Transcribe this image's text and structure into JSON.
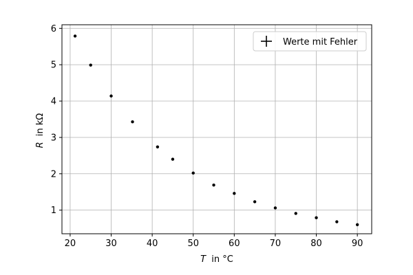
{
  "chart_data": {
    "type": "scatter",
    "xlabel": "in °C",
    "xlabel_var": "T",
    "ylabel": "in kΩ",
    "ylabel_var": "R",
    "xlim": [
      18,
      93.5
    ],
    "ylim": [
      0.35,
      6.1
    ],
    "xticks": [
      20,
      30,
      40,
      50,
      60,
      70,
      80,
      90
    ],
    "yticks": [
      1,
      2,
      3,
      4,
      5,
      6
    ],
    "grid": true,
    "legend": {
      "position": "top-right",
      "entries": [
        "Werte mit Fehler"
      ]
    },
    "series": [
      {
        "name": "Werte mit Fehler",
        "color": "#000000",
        "x": [
          21.2,
          25,
          30,
          35.2,
          41.3,
          45,
          50,
          55,
          60,
          65,
          70,
          75,
          80,
          85,
          90
        ],
        "y": [
          5.79,
          4.99,
          4.14,
          3.43,
          2.74,
          2.4,
          2.02,
          1.69,
          1.46,
          1.23,
          1.06,
          0.91,
          0.79,
          0.68,
          0.6
        ]
      }
    ]
  }
}
